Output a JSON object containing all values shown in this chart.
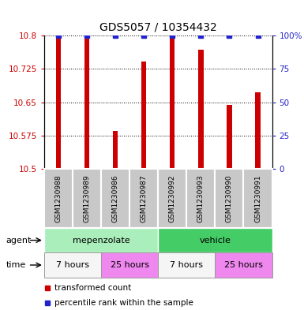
{
  "title": "GDS5057 / 10354432",
  "samples": [
    "GSM1230988",
    "GSM1230989",
    "GSM1230986",
    "GSM1230987",
    "GSM1230992",
    "GSM1230993",
    "GSM1230990",
    "GSM1230991"
  ],
  "red_values": [
    10.797,
    10.793,
    10.585,
    10.742,
    10.798,
    10.768,
    10.645,
    10.672
  ],
  "blue_values": [
    100,
    100,
    100,
    100,
    100,
    100,
    100,
    100
  ],
  "ymin": 10.5,
  "ymax": 10.8,
  "yticks": [
    10.5,
    10.575,
    10.65,
    10.725,
    10.8
  ],
  "ytick_labels": [
    "10.5",
    "10.575",
    "10.65",
    "10.725",
    "10.8"
  ],
  "y2min": 0,
  "y2max": 100,
  "y2ticks": [
    0,
    25,
    50,
    75,
    100
  ],
  "y2tick_labels": [
    "0",
    "25",
    "50",
    "75",
    "100%"
  ],
  "bar_color": "#cc0000",
  "dot_color": "#2222cc",
  "agent_groups": [
    {
      "label": "mepenzolate",
      "start": 0,
      "end": 4,
      "color": "#aaeebb"
    },
    {
      "label": "vehicle",
      "start": 4,
      "end": 8,
      "color": "#44cc66"
    }
  ],
  "time_groups": [
    {
      "label": "7 hours",
      "start": 0,
      "end": 2,
      "color": "#f5f5f5"
    },
    {
      "label": "25 hours",
      "start": 2,
      "end": 4,
      "color": "#ee88ee"
    },
    {
      "label": "7 hours",
      "start": 4,
      "end": 6,
      "color": "#f5f5f5"
    },
    {
      "label": "25 hours",
      "start": 6,
      "end": 8,
      "color": "#ee88ee"
    }
  ],
  "legend_red_label": "transformed count",
  "legend_blue_label": "percentile rank within the sample",
  "tick_color_left": "#cc0000",
  "tick_color_right": "#2222cc",
  "bar_width": 0.18,
  "sample_box_color": "#c8c8c8",
  "sample_box_edge": "#ffffff"
}
